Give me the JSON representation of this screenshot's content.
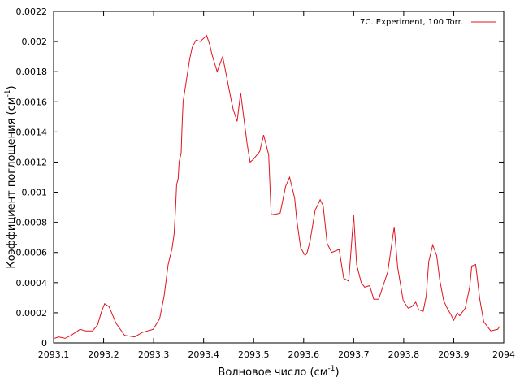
{
  "chart_data": {
    "type": "line",
    "title": "",
    "xlabel": "Волновое число (см",
    "xlabel_sup": "-1",
    "xlabel_close": ")",
    "ylabel": "Коэффициент поглощения (см",
    "ylabel_sup": "-1",
    "ylabel_close": ")",
    "xlim": [
      2093.1,
      2094.0
    ],
    "ylim": [
      0,
      0.0022
    ],
    "xticks": [
      2093.1,
      2093.2,
      2093.3,
      2093.4,
      2093.5,
      2093.6,
      2093.7,
      2093.8,
      2093.9,
      2094
    ],
    "xtick_labels": [
      "2093.1",
      "2093.2",
      "2093.3",
      "2093.4",
      "2093.5",
      "2093.6",
      "2093.7",
      "2093.8",
      "2093.9",
      "2094"
    ],
    "yticks": [
      0,
      0.0002,
      0.0004,
      0.0006,
      0.0008,
      0.001,
      0.0012,
      0.0014,
      0.0016,
      0.0018,
      0.002,
      0.0022
    ],
    "ytick_labels": [
      "0",
      "0.0002",
      "0.0004",
      "0.0006",
      "0.0008",
      "0.001",
      "0.0012",
      "0.0014",
      "0.0016",
      "0.0018",
      "0.002",
      "0.0022"
    ],
    "grid": false,
    "legend_position": "top-right",
    "series": [
      {
        "name": "7C. Experiment, 100 Torr.",
        "color": "#e0141e",
        "x": [
          2093.102,
          2093.11,
          2093.123,
          2093.135,
          2093.153,
          2093.164,
          2093.178,
          2093.188,
          2093.196,
          2093.202,
          2093.211,
          2093.225,
          2093.242,
          2093.262,
          2093.278,
          2093.299,
          2093.312,
          2093.321,
          2093.329,
          2093.337,
          2093.341,
          2093.344,
          2093.346,
          2093.349,
          2093.351,
          2093.355,
          2093.357,
          2093.359,
          2093.365,
          2093.372,
          2093.377,
          2093.385,
          2093.393,
          2093.406,
          2093.412,
          2093.417,
          2093.427,
          2093.438,
          2093.454,
          2093.459,
          2093.467,
          2093.474,
          2093.487,
          2093.493,
          2093.5,
          2093.512,
          2093.52,
          2093.53,
          2093.535,
          2093.553,
          2093.564,
          2093.572,
          2093.582,
          2093.586,
          2093.594,
          2093.603,
          2093.607,
          2093.613,
          2093.623,
          2093.633,
          2093.639,
          2093.647,
          2093.656,
          2093.671,
          2093.68,
          2093.69,
          2093.695,
          2093.7,
          2093.706,
          2093.715,
          2093.722,
          2093.732,
          2093.74,
          2093.75,
          2093.768,
          2093.781,
          2093.788,
          2093.799,
          2093.809,
          2093.816,
          2093.824,
          2093.83,
          2093.839,
          2093.845,
          2093.85,
          2093.858,
          2093.866,
          2093.872,
          2093.88,
          2093.887,
          2093.894,
          2093.9,
          2093.907,
          2093.912,
          2093.923,
          2093.932,
          2093.936,
          2093.944,
          2093.952,
          2093.96,
          2093.974,
          2093.988,
          2093.992
        ],
        "y": [
          3e-05,
          4e-05,
          3e-05,
          5e-05,
          9e-05,
          8e-05,
          8e-05,
          0.00012,
          0.00021,
          0.00026,
          0.00024,
          0.00013,
          5e-05,
          4e-05,
          7e-05,
          9e-05,
          0.00016,
          0.00031,
          0.00052,
          0.00063,
          0.00072,
          0.0009,
          0.00105,
          0.00109,
          0.0012,
          0.00126,
          0.00145,
          0.0016,
          0.00173,
          0.00188,
          0.00196,
          0.00201,
          0.002,
          0.00204,
          0.00198,
          0.00191,
          0.0018,
          0.0019,
          0.00163,
          0.00155,
          0.00147,
          0.00166,
          0.00132,
          0.0012,
          0.00122,
          0.00127,
          0.00138,
          0.00125,
          0.00085,
          0.00086,
          0.00104,
          0.0011,
          0.00096,
          0.00082,
          0.00063,
          0.00058,
          0.0006,
          0.00068,
          0.00088,
          0.00095,
          0.00091,
          0.00066,
          0.0006,
          0.00062,
          0.00043,
          0.00041,
          0.00063,
          0.00085,
          0.00052,
          0.0004,
          0.00037,
          0.00038,
          0.00029,
          0.00029,
          0.00047,
          0.00077,
          0.0005,
          0.00028,
          0.00023,
          0.00024,
          0.00027,
          0.00022,
          0.00021,
          0.00031,
          0.00054,
          0.00065,
          0.00058,
          0.00042,
          0.00028,
          0.00023,
          0.00019,
          0.00015,
          0.0002,
          0.00018,
          0.00023,
          0.00037,
          0.00051,
          0.00052,
          0.00029,
          0.00014,
          8e-05,
          9e-05,
          0.00011
        ]
      }
    ]
  }
}
